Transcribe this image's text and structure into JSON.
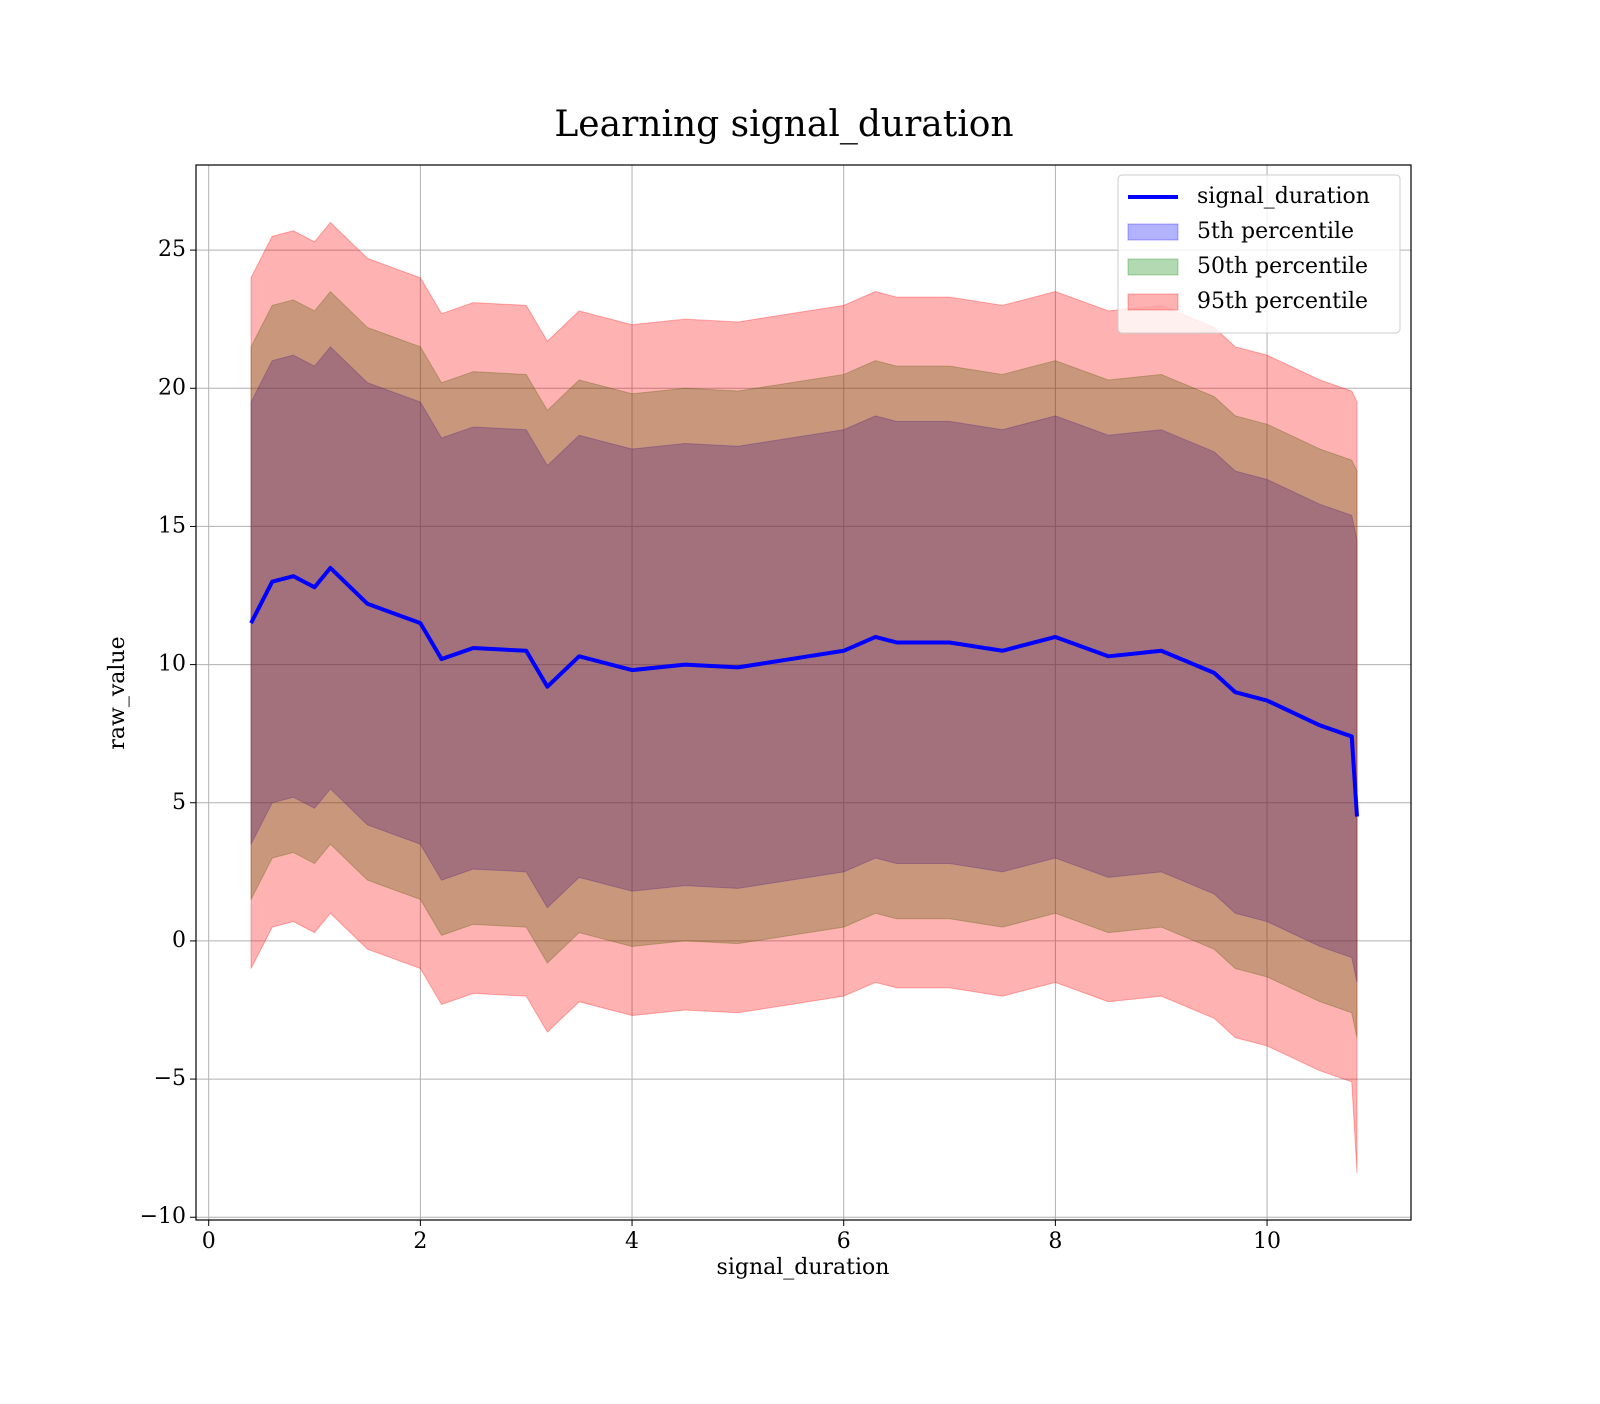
{
  "chart_data": {
    "type": "line_band",
    "title": "Learning signal_duration",
    "xlabel": "signal_duration",
    "ylabel": "raw_value",
    "x": [
      0.4,
      0.6,
      0.8,
      1.0,
      1.15,
      1.5,
      2.0,
      2.2,
      2.5,
      3.0,
      3.2,
      3.5,
      4.0,
      4.5,
      5.0,
      5.5,
      6.0,
      6.3,
      6.5,
      7.0,
      7.5,
      8.0,
      8.5,
      9.0,
      9.5,
      9.7,
      10.0,
      10.5,
      10.8,
      10.85
    ],
    "series": [
      {
        "name": "signal_duration",
        "color": "#0000ff",
        "values": [
          11.5,
          13.0,
          13.2,
          12.8,
          13.5,
          12.2,
          11.5,
          10.2,
          10.6,
          10.5,
          9.2,
          10.3,
          9.8,
          10.0,
          9.9,
          10.2,
          10.5,
          11.0,
          10.8,
          10.8,
          10.5,
          11.0,
          10.3,
          10.5,
          9.7,
          9.0,
          8.7,
          7.8,
          7.4,
          4.5
        ]
      }
    ],
    "bands": [
      {
        "name": "5th percentile",
        "color": "#0000ff",
        "upper": [
          19.5,
          21.0,
          21.2,
          20.8,
          21.5,
          20.2,
          19.5,
          18.2,
          18.6,
          18.5,
          17.2,
          18.3,
          17.8,
          18.0,
          17.9,
          18.2,
          18.5,
          19.0,
          18.8,
          18.8,
          18.5,
          19.0,
          18.3,
          18.5,
          17.7,
          17.0,
          16.7,
          15.8,
          15.4,
          14.5
        ],
        "lower": [
          3.5,
          5.0,
          5.2,
          4.8,
          5.5,
          4.2,
          3.5,
          2.2,
          2.6,
          2.5,
          1.2,
          2.3,
          1.8,
          2.0,
          1.9,
          2.2,
          2.5,
          3.0,
          2.8,
          2.8,
          2.5,
          3.0,
          2.3,
          2.5,
          1.7,
          1.0,
          0.7,
          -0.2,
          -0.6,
          -1.5
        ]
      },
      {
        "name": "50th percentile",
        "color": "#008000",
        "upper": [
          21.5,
          23.0,
          23.2,
          22.8,
          23.5,
          22.2,
          21.5,
          20.2,
          20.6,
          20.5,
          19.2,
          20.3,
          19.8,
          20.0,
          19.9,
          20.2,
          20.5,
          21.0,
          20.8,
          20.8,
          20.5,
          21.0,
          20.3,
          20.5,
          19.7,
          19.0,
          18.7,
          17.8,
          17.4,
          17.0
        ],
        "lower": [
          1.5,
          3.0,
          3.2,
          2.8,
          3.5,
          2.2,
          1.5,
          0.2,
          0.6,
          0.5,
          -0.8,
          0.3,
          -0.2,
          0.0,
          -0.1,
          0.2,
          0.5,
          1.0,
          0.8,
          0.8,
          0.5,
          1.0,
          0.3,
          0.5,
          -0.3,
          -1.0,
          -1.3,
          -2.2,
          -2.6,
          -3.5
        ]
      },
      {
        "name": "95th percentile",
        "color": "#ff0000",
        "upper": [
          24.0,
          25.5,
          25.7,
          25.3,
          26.0,
          24.7,
          24.0,
          22.7,
          23.1,
          23.0,
          21.7,
          22.8,
          22.3,
          22.5,
          22.4,
          22.7,
          23.0,
          23.5,
          23.3,
          23.3,
          23.0,
          23.5,
          22.8,
          23.0,
          22.2,
          21.5,
          21.2,
          20.3,
          19.9,
          19.5
        ],
        "lower": [
          -1.0,
          0.5,
          0.7,
          0.3,
          1.0,
          -0.3,
          -1.0,
          -2.3,
          -1.9,
          -2.0,
          -3.3,
          -2.2,
          -2.7,
          -2.5,
          -2.6,
          -2.3,
          -2.0,
          -1.5,
          -1.7,
          -1.7,
          -2.0,
          -1.5,
          -2.2,
          -2.0,
          -2.8,
          -3.5,
          -3.8,
          -4.7,
          -5.1,
          -8.4
        ]
      }
    ],
    "band_alpha": 0.3,
    "xlim": [
      -0.12,
      11.36
    ],
    "ylim": [
      -10.1,
      28.08
    ],
    "xticks": [
      0,
      2,
      4,
      6,
      8,
      10
    ],
    "yticks": [
      {
        "value": -10,
        "label": "−10"
      },
      {
        "value": -5,
        "label": "−5"
      },
      0,
      5,
      10,
      15,
      20,
      25
    ],
    "grid": true,
    "legend": "upper right"
  }
}
